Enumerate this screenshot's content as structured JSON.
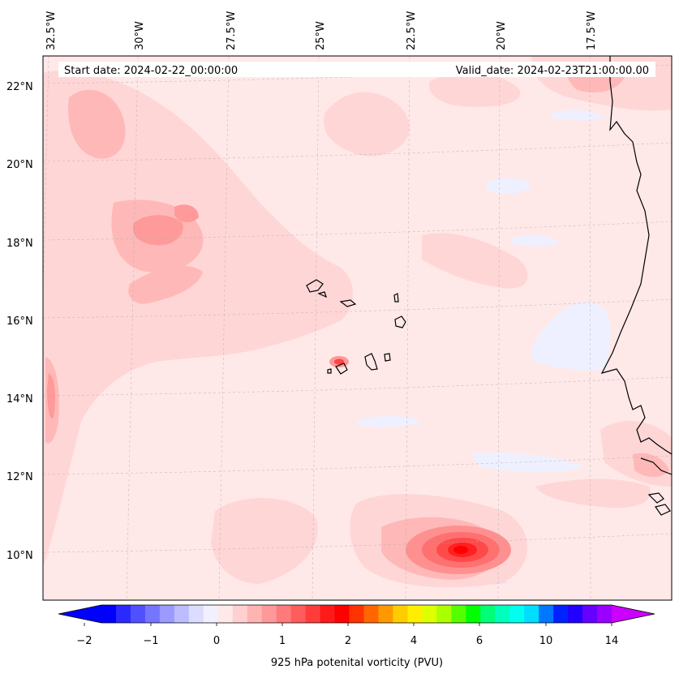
{
  "map": {
    "header": {
      "start_date": "Start date: 2024-02-22_00:00:00",
      "valid_date": "Valid_date: 2024-02-23T21:00:00.00"
    },
    "lon_labels": [
      "32.5°W",
      "30°W",
      "27.5°W",
      "25°W",
      "22.5°W",
      "20°W",
      "17.5°W"
    ],
    "lat_labels": [
      "22°N",
      "20°N",
      "18°N",
      "16°N",
      "14°N",
      "12°N",
      "10°N"
    ],
    "colorbar": {
      "label": "925 hPa potenital vorticity (PVU)",
      "tick_labels": [
        "−2",
        "−1",
        "0",
        "1",
        "2",
        "4",
        "6",
        "10",
        "14"
      ],
      "colors": [
        "#0000ff",
        "#2a2aff",
        "#5050ff",
        "#7575ff",
        "#9a9aff",
        "#bcbcff",
        "#dcdcff",
        "#f0f0ff",
        "#ffe8e8",
        "#ffd0d0",
        "#ffb4b4",
        "#ff9898",
        "#ff7a7a",
        "#ff5c5c",
        "#ff3c3c",
        "#ff1a1a",
        "#ff0000",
        "#ff3300",
        "#ff6600",
        "#ff9900",
        "#ffcc00",
        "#ffee00",
        "#ddff00",
        "#aaff00",
        "#55ff00",
        "#00ff00",
        "#00ff77",
        "#00ffbb",
        "#00ffee",
        "#00ddff",
        "#0077ff",
        "#0022ff",
        "#2200ff",
        "#6600ff",
        "#9900ff"
      ],
      "under_color": "#0000ff",
      "over_color": "#cc00ff"
    },
    "colors": {
      "background_field": "#ffe8e8",
      "light_pink": "#ffd6d6",
      "medium_pink": "#ffb8b8",
      "strong_pink": "#ff9a9a",
      "red": "#ff2a2a",
      "pale_blue": "#eef0ff",
      "coastline": "#000000"
    }
  }
}
